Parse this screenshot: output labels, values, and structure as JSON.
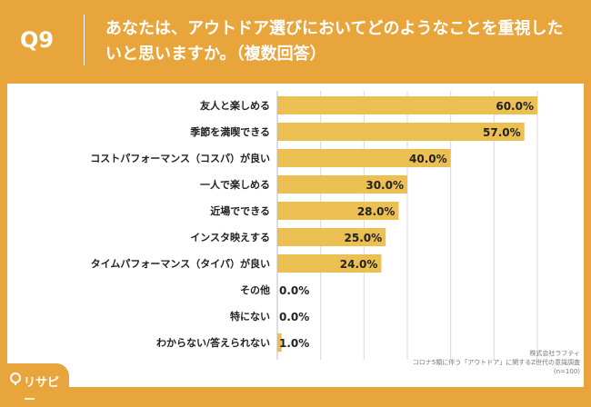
{
  "header": {
    "question_number": "Q9",
    "title": "あなたは、アウトドア選びにおいてどのようなことを重視したいと思いますか。（複数回答）"
  },
  "brand": {
    "logo_text": "リサピー",
    "logo_icon": "pin-icon"
  },
  "credit": {
    "company": "株式会社ラフティ",
    "survey": "コロナ5類に伴う「アウトドア」に関するZ世代の意識調査",
    "sample": "(n=100)"
  },
  "colors": {
    "background": "#e8a53c",
    "bar": "#ecbf52",
    "grid": "#d9d9d9"
  },
  "chart_data": {
    "type": "bar",
    "orientation": "horizontal",
    "categories": [
      "友人と楽しめる",
      "季節を満喫できる",
      "コストパフォーマンス（コスパ）が良い",
      "一人で楽しめる",
      "近場でできる",
      "インスタ映えする",
      "タイムパフォーマンス（タイパ）が良い",
      "その他",
      "特にない",
      "わからない/答えられない"
    ],
    "values": [
      60.0,
      57.0,
      40.0,
      30.0,
      28.0,
      25.0,
      24.0,
      0.0,
      0.0,
      1.0
    ],
    "value_labels": [
      "60.0%",
      "57.0%",
      "40.0%",
      "30.0%",
      "28.0%",
      "25.0%",
      "24.0%",
      "0.0%",
      "0.0%",
      "1.0%"
    ],
    "xlim": [
      0,
      60
    ],
    "grid": true
  }
}
